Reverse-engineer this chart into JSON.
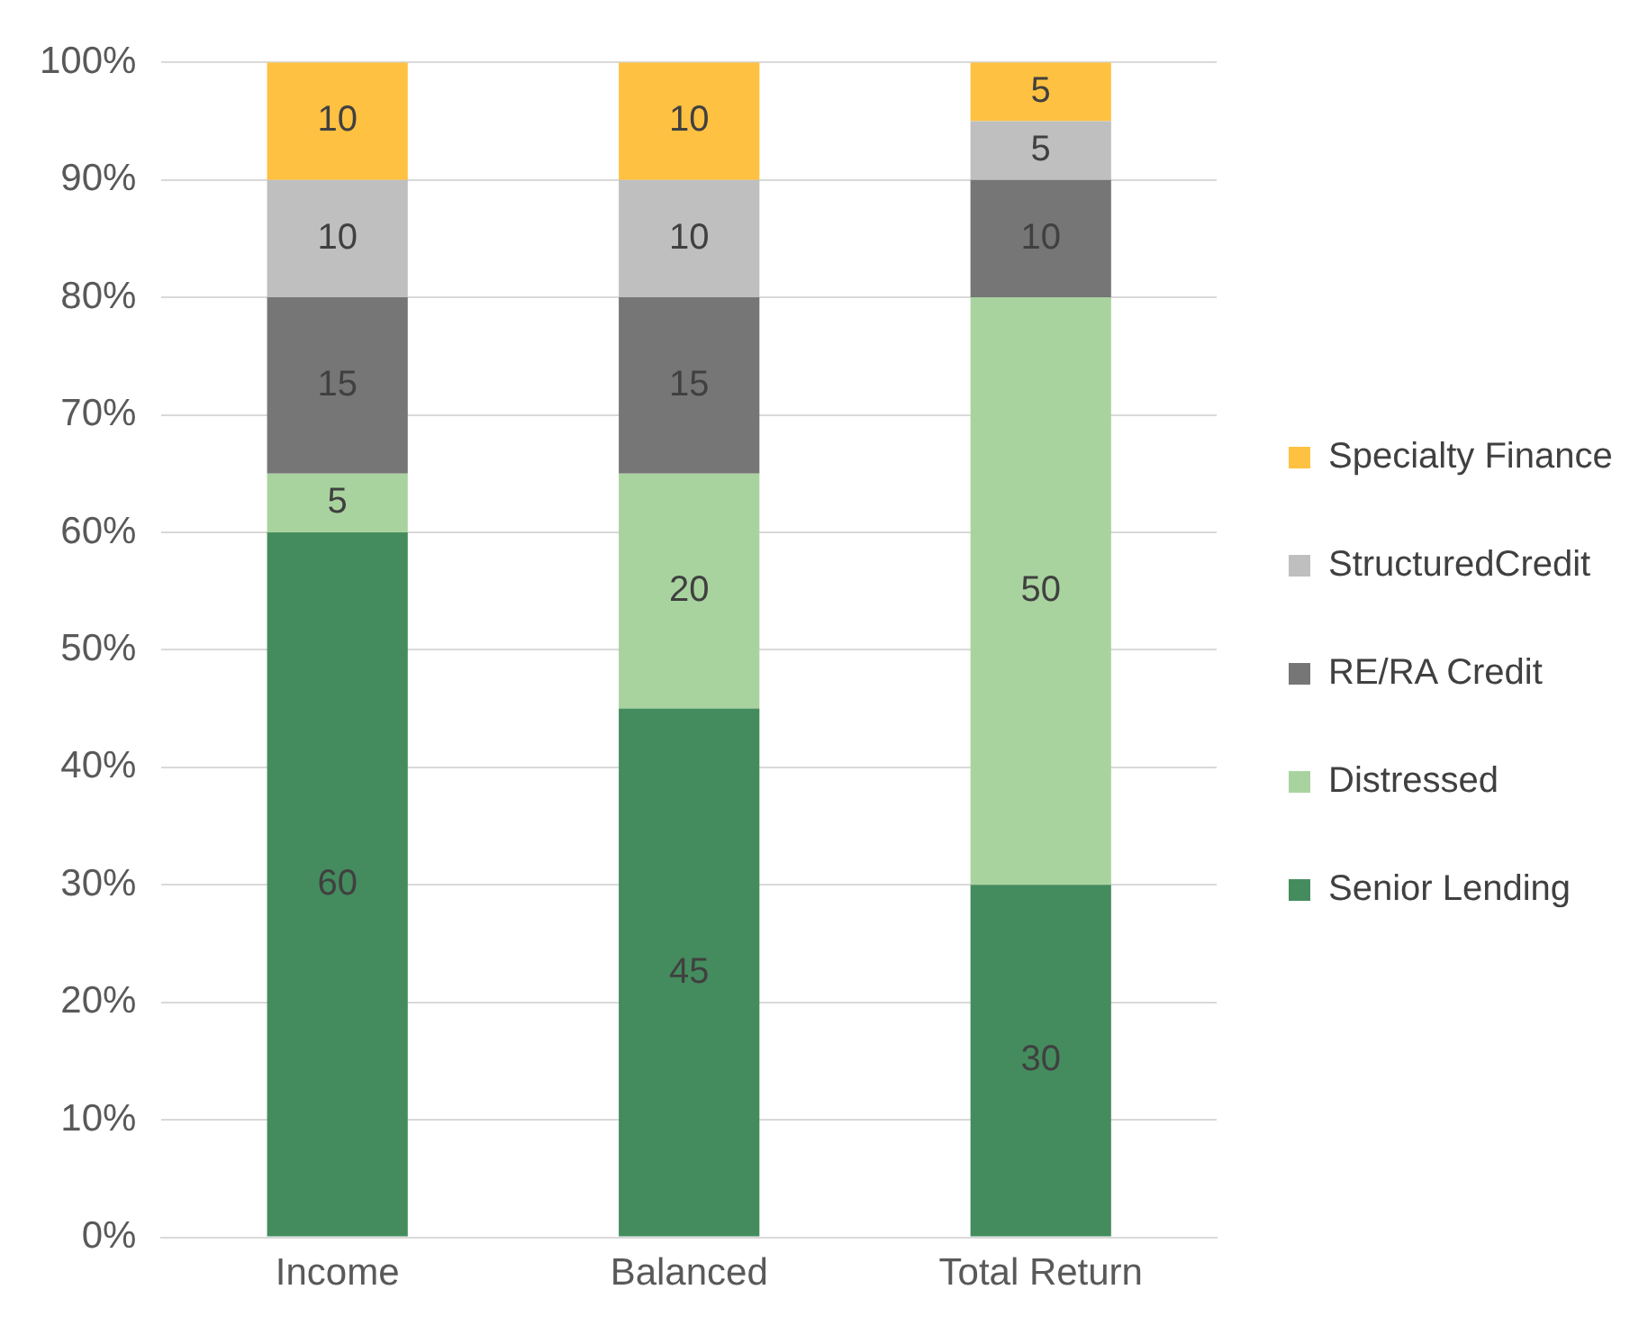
{
  "chart_data": {
    "type": "bar",
    "stacked": true,
    "categories": [
      "Income",
      "Balanced",
      "Total Return"
    ],
    "series": [
      {
        "name": "Senior Lending",
        "color": "#448c5e",
        "values": [
          60,
          45,
          30
        ]
      },
      {
        "name": "Distressed",
        "color": "#a9d39e",
        "values": [
          5,
          20,
          50
        ]
      },
      {
        "name": "RE/RA Credit",
        "color": "#767676",
        "values": [
          15,
          15,
          10
        ]
      },
      {
        "name": "StructuredCredit",
        "color": "#bfbfbf",
        "values": [
          10,
          10,
          5
        ]
      },
      {
        "name": "Specialty Finance",
        "color": "#ffc141",
        "values": [
          10,
          10,
          5
        ]
      }
    ],
    "ylim": [
      0,
      100
    ],
    "yticks": [
      {
        "value": 0,
        "label": "0%"
      },
      {
        "value": 10,
        "label": "10%"
      },
      {
        "value": 20,
        "label": "20%"
      },
      {
        "value": 30,
        "label": "30%"
      },
      {
        "value": 40,
        "label": "40%"
      },
      {
        "value": 50,
        "label": "50%"
      },
      {
        "value": 60,
        "label": "60%"
      },
      {
        "value": 70,
        "label": "70%"
      },
      {
        "value": 80,
        "label": "80%"
      },
      {
        "value": 90,
        "label": "90%"
      },
      {
        "value": 100,
        "label": "100%"
      }
    ],
    "grid": "y",
    "legend": "right",
    "data_labels": true
  }
}
